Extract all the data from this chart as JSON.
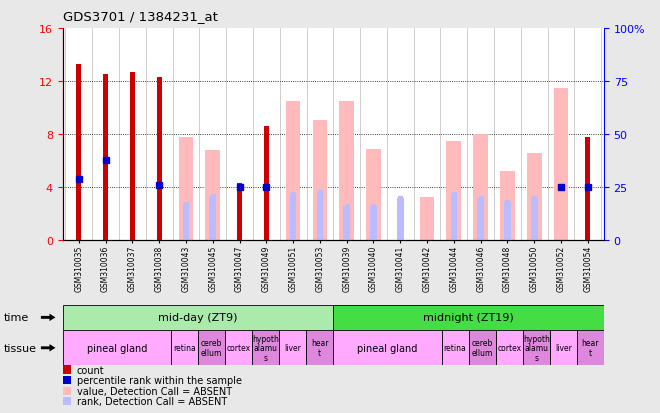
{
  "title": "GDS3701 / 1384231_at",
  "samples": [
    "GSM310035",
    "GSM310036",
    "GSM310037",
    "GSM310038",
    "GSM310043",
    "GSM310045",
    "GSM310047",
    "GSM310049",
    "GSM310051",
    "GSM310053",
    "GSM310039",
    "GSM310040",
    "GSM310041",
    "GSM310042",
    "GSM310044",
    "GSM310046",
    "GSM310048",
    "GSM310050",
    "GSM310052",
    "GSM310054"
  ],
  "count": [
    13.3,
    12.5,
    12.7,
    12.3,
    null,
    null,
    4.3,
    8.6,
    null,
    null,
    null,
    null,
    null,
    null,
    null,
    null,
    null,
    null,
    null,
    7.8
  ],
  "value_absent": [
    null,
    null,
    null,
    null,
    7.8,
    6.8,
    null,
    null,
    10.5,
    9.1,
    10.5,
    6.9,
    null,
    3.3,
    7.5,
    8.0,
    5.2,
    6.6,
    11.5,
    null
  ],
  "rank_present_pct": [
    29,
    38,
    null,
    26,
    null,
    null,
    25,
    25,
    null,
    null,
    null,
    null,
    null,
    null,
    null,
    null,
    null,
    null,
    25,
    25
  ],
  "rank_absent_pct": [
    null,
    null,
    null,
    null,
    17,
    21,
    null,
    null,
    22,
    23,
    16,
    16,
    20,
    null,
    22,
    20,
    18,
    20,
    null,
    null
  ],
  "time_groups": [
    {
      "label": "mid-day (ZT9)",
      "start": 0,
      "end": 10,
      "color": "#aaeaaa"
    },
    {
      "label": "midnight (ZT19)",
      "start": 10,
      "end": 20,
      "color": "#44dd44"
    }
  ],
  "tissue_groups": [
    {
      "label": "pineal gland",
      "start": 0,
      "end": 4,
      "color": "#ffaaff"
    },
    {
      "label": "retina",
      "start": 4,
      "end": 5,
      "color": "#ffaaff"
    },
    {
      "label": "cereb\nellum",
      "start": 5,
      "end": 6,
      "color": "#dd88dd"
    },
    {
      "label": "cortex",
      "start": 6,
      "end": 7,
      "color": "#ffaaff"
    },
    {
      "label": "hypoth\nalamu\ns",
      "start": 7,
      "end": 8,
      "color": "#dd88dd"
    },
    {
      "label": "liver",
      "start": 8,
      "end": 9,
      "color": "#ffaaff"
    },
    {
      "label": "hear\nt",
      "start": 9,
      "end": 10,
      "color": "#dd88dd"
    },
    {
      "label": "pineal gland",
      "start": 10,
      "end": 14,
      "color": "#ffaaff"
    },
    {
      "label": "retina",
      "start": 14,
      "end": 15,
      "color": "#ffaaff"
    },
    {
      "label": "cereb\nellum",
      "start": 15,
      "end": 16,
      "color": "#dd88dd"
    },
    {
      "label": "cortex",
      "start": 16,
      "end": 17,
      "color": "#ffaaff"
    },
    {
      "label": "hypoth\nalamu\ns",
      "start": 17,
      "end": 18,
      "color": "#dd88dd"
    },
    {
      "label": "liver",
      "start": 18,
      "end": 19,
      "color": "#ffaaff"
    },
    {
      "label": "hear\nt",
      "start": 19,
      "end": 20,
      "color": "#dd88dd"
    }
  ],
  "ylim_left": [
    0,
    16
  ],
  "ylim_right": [
    0,
    100
  ],
  "yticks_left": [
    0,
    4,
    8,
    12,
    16
  ],
  "yticks_right": [
    0,
    25,
    50,
    75,
    100
  ],
  "color_count": "#cc0000",
  "color_rank_present": "#0000cc",
  "color_value_absent": "#ffbbbb",
  "color_rank_absent": "#bbbbff",
  "bg_color": "#e8e8e8",
  "axis_bg": "#ffffff",
  "legend": [
    {
      "color": "#cc0000",
      "label": "count"
    },
    {
      "color": "#0000cc",
      "label": "percentile rank within the sample"
    },
    {
      "color": "#ffbbbb",
      "label": "value, Detection Call = ABSENT"
    },
    {
      "color": "#bbbbff",
      "label": "rank, Detection Call = ABSENT"
    }
  ]
}
